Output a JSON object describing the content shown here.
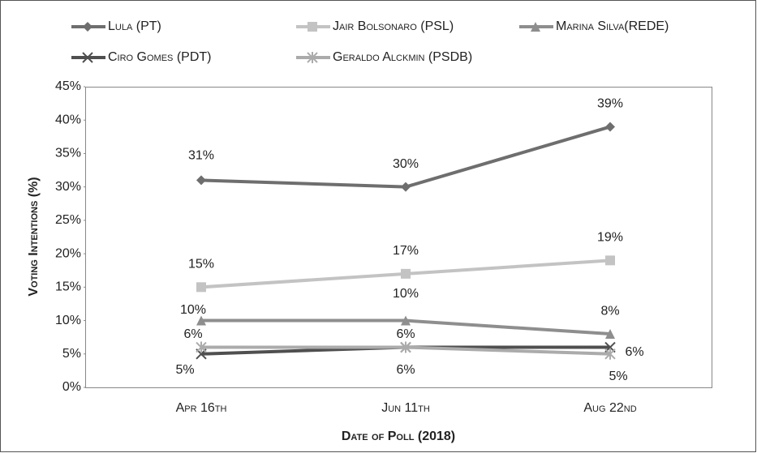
{
  "chart_data": {
    "type": "line",
    "x_label": "Date of Poll (2018)",
    "y_label": "Voting Intentions (%)",
    "categories": [
      "Apr 16th",
      "Jun 11th",
      "Aug 22nd"
    ],
    "ylim": [
      0,
      45
    ],
    "yticks": [
      {
        "value": 0,
        "label": "0%"
      },
      {
        "value": 5,
        "label": "5%"
      },
      {
        "value": 10,
        "label": "10%"
      },
      {
        "value": 15,
        "label": "15%"
      },
      {
        "value": 20,
        "label": "20%"
      },
      {
        "value": 25,
        "label": "25%"
      },
      {
        "value": 30,
        "label": "30%"
      },
      {
        "value": 35,
        "label": "35%"
      },
      {
        "value": 40,
        "label": "40%"
      },
      {
        "value": 45,
        "label": "45%"
      }
    ],
    "grid": false,
    "series": [
      {
        "name": "Lula (PT)",
        "color": "#6e6e6e",
        "marker": "diamond",
        "values": [
          31,
          30,
          39
        ],
        "value_labels": [
          "31%",
          "30%",
          "39%"
        ]
      },
      {
        "name": "Jair Bolsonaro (PSL)",
        "color": "#c3c3c3",
        "marker": "square",
        "values": [
          15,
          17,
          19
        ],
        "value_labels": [
          "15%",
          "17%",
          "19%"
        ]
      },
      {
        "name": "Marina Silva(REDE)",
        "color": "#8e8e8e",
        "marker": "triangle",
        "values": [
          10,
          10,
          8
        ],
        "value_labels": [
          "10%",
          "10%",
          "8%"
        ]
      },
      {
        "name": "Ciro Gomes (PDT)",
        "color": "#4f4f4f",
        "marker": "x",
        "values": [
          5,
          6,
          6
        ],
        "value_labels": [
          "5%",
          "6%",
          "6%"
        ]
      },
      {
        "name": "Geraldo Alckmin (PSDB)",
        "color": "#ababab",
        "marker": "star",
        "values": [
          6,
          6,
          5
        ],
        "value_labels": [
          "6%",
          "6%",
          "5%"
        ]
      }
    ]
  }
}
